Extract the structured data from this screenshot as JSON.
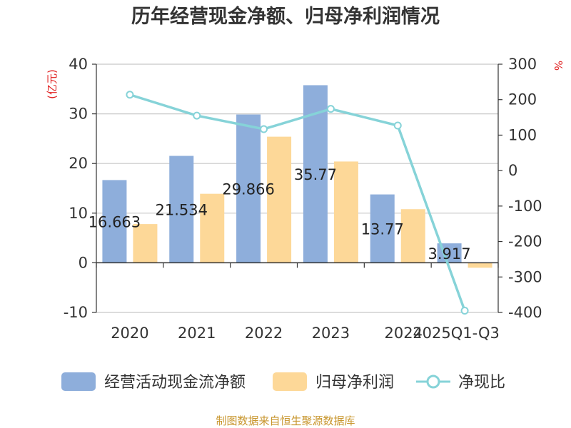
{
  "chart_data": {
    "type": "bar",
    "title": "历年经营现金净额、归母净利润情况",
    "categories": [
      "2020",
      "2021",
      "2022",
      "2023",
      "2024",
      "2025Q1-Q3"
    ],
    "series": [
      {
        "name": "经营活动现金流净额",
        "kind": "bar",
        "axis": "left",
        "color": "#8eaedb",
        "values": [
          16.663,
          21.534,
          29.866,
          35.77,
          13.77,
          3.917
        ],
        "labels": [
          "16.663",
          "21.534",
          "29.866",
          "35.77",
          "13.77",
          "3.917"
        ]
      },
      {
        "name": "归母净利润",
        "kind": "bar",
        "axis": "left",
        "color": "#fdd898",
        "values": [
          7.8,
          13.9,
          25.4,
          20.4,
          10.8,
          -1.0
        ]
      },
      {
        "name": "净现比",
        "kind": "line",
        "axis": "right",
        "color": "#86d3d8",
        "values": [
          214,
          155,
          117,
          174,
          127,
          -395
        ]
      }
    ],
    "left_axis": {
      "unit": "(亿元)",
      "ylim": [
        -10,
        40
      ],
      "ticks": [
        "40",
        "30",
        "20",
        "10",
        "0",
        "-10"
      ]
    },
    "right_axis": {
      "unit": "%",
      "ylim": [
        -400,
        300
      ],
      "ticks": [
        "300",
        "200",
        "100",
        "0",
        "-100",
        "-200",
        "-300",
        "-400"
      ]
    },
    "legend_position": "bottom",
    "source": "制图数据来自恒生聚源数据库"
  }
}
